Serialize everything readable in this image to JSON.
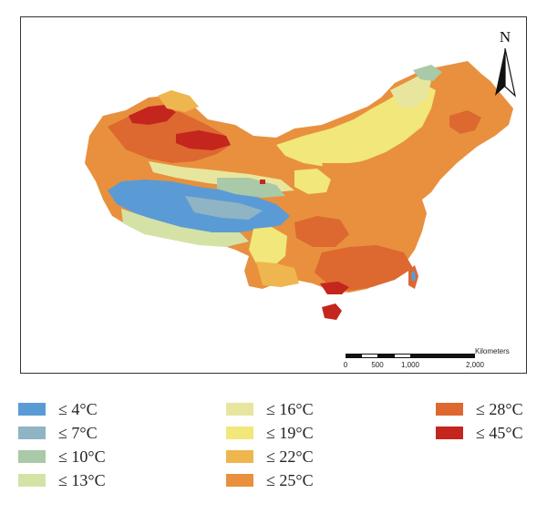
{
  "map": {
    "north_label": "N",
    "scale": {
      "unit": "Kilometers",
      "ticks": [
        "0",
        "500",
        "1,000",
        "2,000"
      ]
    }
  },
  "legend": {
    "items": [
      {
        "label": "≤ 4°C",
        "color": "#5b9bd5"
      },
      {
        "label": "≤ 7°C",
        "color": "#8fb4c4"
      },
      {
        "label": "≤ 10°C",
        "color": "#a9c9a8"
      },
      {
        "label": "≤ 13°C",
        "color": "#d5e2a6"
      },
      {
        "label": "≤ 16°C",
        "color": "#e8e69e"
      },
      {
        "label": "≤ 19°C",
        "color": "#f1e77a"
      },
      {
        "label": "≤ 22°C",
        "color": "#efb54e"
      },
      {
        "label": "≤ 25°C",
        "color": "#e8903e"
      },
      {
        "label": "≤ 28°C",
        "color": "#dd6830"
      },
      {
        "label": "≤ 45°C",
        "color": "#c4261d"
      }
    ]
  }
}
